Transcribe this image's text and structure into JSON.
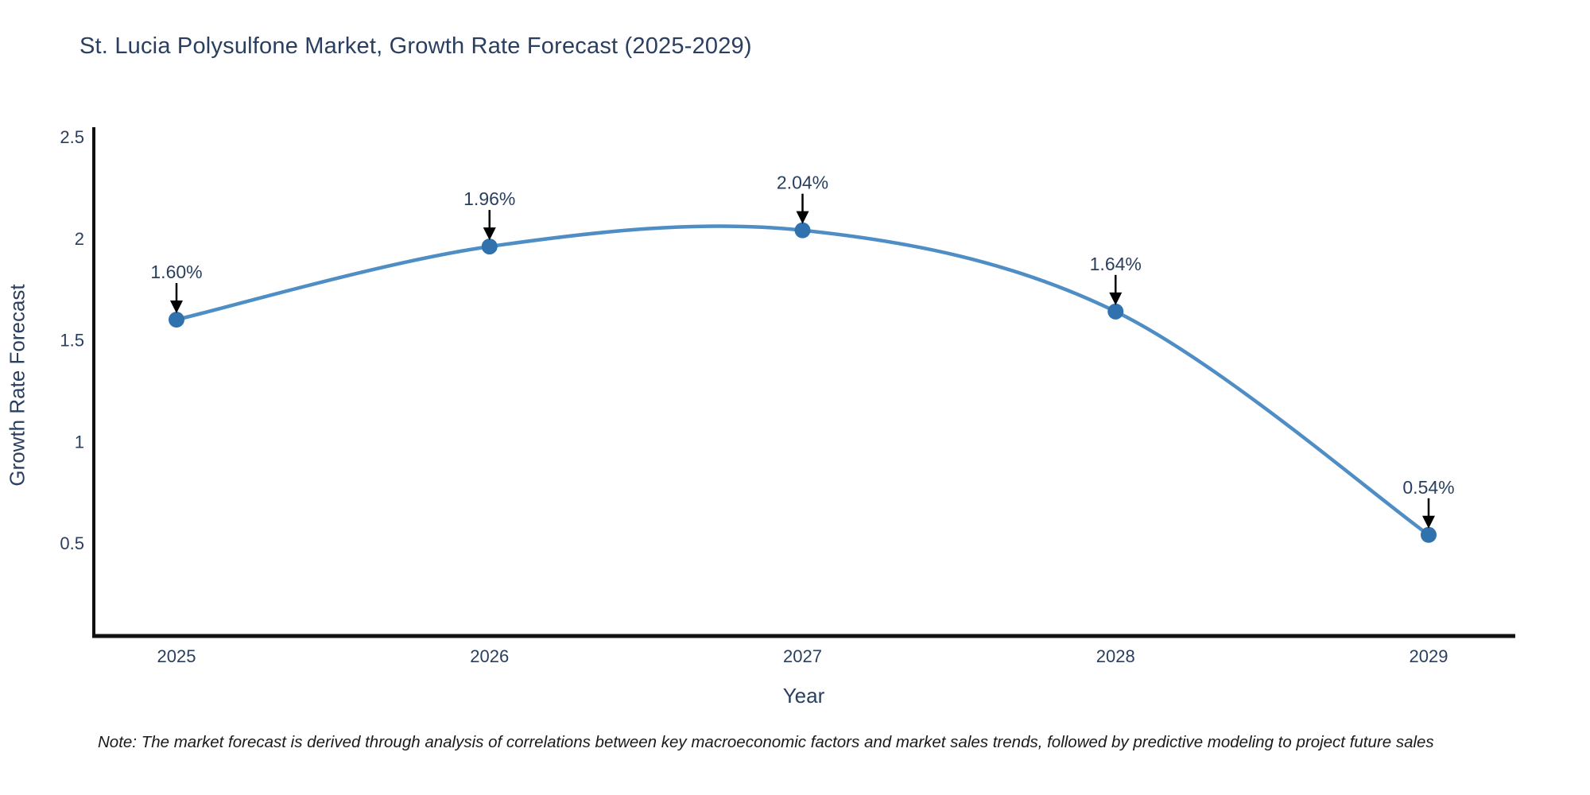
{
  "title": "St. Lucia Polysulfone Market, Growth Rate Forecast (2025-2029)",
  "note": "Note: The market forecast is derived through analysis of correlations between key macroeconomic factors and market sales trends, followed by predictive modeling to project future sales",
  "chart_data": {
    "type": "line",
    "line_shape": "spline",
    "title": "St. Lucia Polysulfone Market, Growth Rate Forecast (2025-2029)",
    "xlabel": "Year",
    "ylabel": "Growth Rate Forecast",
    "categories": [
      "2025",
      "2026",
      "2027",
      "2028",
      "2029"
    ],
    "values": [
      1.6,
      1.96,
      2.04,
      1.64,
      0.54
    ],
    "point_labels": [
      "1.60%",
      "1.96%",
      "2.04%",
      "1.64%",
      "0.54%"
    ],
    "y_ticks": [
      0.5,
      1,
      1.5,
      2,
      2.5
    ],
    "ylim": [
      0.04,
      2.53
    ],
    "grid": false,
    "legend": "none",
    "annotations_style": "value labels with black down arrows above each point",
    "colors": {
      "line": "#4e8ec5",
      "marker": "#2f72ae",
      "axis": "#111111",
      "tick_text": "#2a3f5f",
      "title_text": "#2a3f5f",
      "arrow": "#000000",
      "background": "#ffffff"
    }
  }
}
